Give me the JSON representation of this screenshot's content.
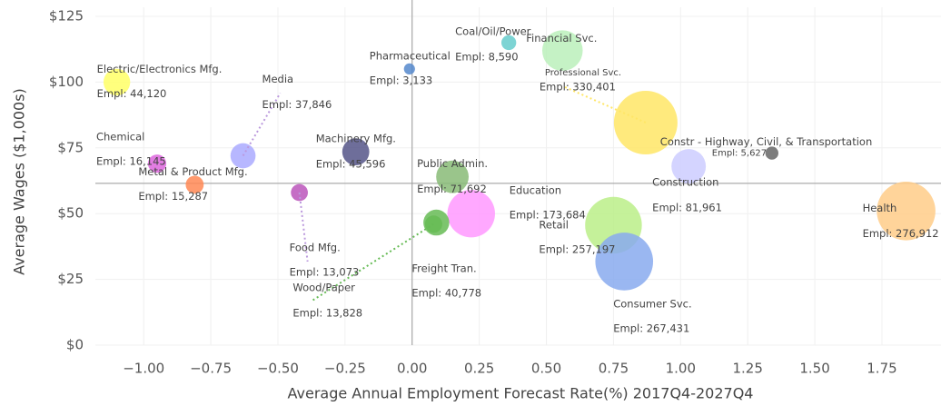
{
  "chart_data": {
    "type": "bubble",
    "xlabel": "Average Annual Employment Forecast Rate(%) 2017Q4-2027Q4",
    "ylabel": "Average Wages ($1,000s)",
    "xlim": [
      -1.18,
      1.97
    ],
    "ylim": [
      0,
      125
    ],
    "xticks": [
      {
        "value": -1,
        "label": "−1.00"
      },
      {
        "value": -0.75,
        "label": "−0.75"
      },
      {
        "value": -0.5,
        "label": "−0.50"
      },
      {
        "value": -0.25,
        "label": "−0.25"
      },
      {
        "value": 0,
        "label": "0.00"
      },
      {
        "value": 0.25,
        "label": "0.25"
      },
      {
        "value": 0.5,
        "label": "0.50"
      },
      {
        "value": 0.75,
        "label": "0.75"
      },
      {
        "value": 1,
        "label": "1.00"
      },
      {
        "value": 1.25,
        "label": "1.25"
      },
      {
        "value": 1.5,
        "label": "1.50"
      },
      {
        "value": 1.75,
        "label": "1.75"
      }
    ],
    "yticks": [
      {
        "value": 0,
        "label": "$0"
      },
      {
        "value": 25,
        "label": "$25"
      },
      {
        "value": 50,
        "label": "$50"
      },
      {
        "value": 75,
        "label": "$75"
      },
      {
        "value": 100,
        "label": "$100"
      },
      {
        "value": 125,
        "label": "$125"
      }
    ],
    "grid": true,
    "reference_lines": {
      "x": 0,
      "y": 61.5
    },
    "names": [
      "Electric/Electronics Mfg.",
      "Chemical",
      "Metal & Product Mfg.",
      "Media",
      "Food Mfg.",
      "Machinery Mfg.",
      "Pharmaceutical",
      "Coal/Oil/Power",
      "Financial Svc.",
      "Professional Svc.",
      "Public Admin.",
      "Education",
      "Freight Tran.",
      "Retail",
      "Consumer Svc.",
      "Construction",
      "Constr - Highway, Civil, & Transportation",
      "Health",
      "Wood/Paper"
    ],
    "x": [
      -1.1,
      -0.95,
      -0.81,
      -0.63,
      -0.42,
      -0.21,
      -0.01,
      0.36,
      0.56,
      0.87,
      0.15,
      0.22,
      0.09,
      0.75,
      0.79,
      1.03,
      1.34,
      1.84,
      0.08
    ],
    "values": [
      100,
      69,
      61,
      72,
      58,
      73.5,
      105,
      115,
      112,
      84.6,
      64,
      50,
      46.6,
      45.6,
      31.8,
      68,
      73,
      51,
      46
    ],
    "sizes": [
      44120,
      16145,
      15287,
      37846,
      13073,
      45596,
      3133,
      8590,
      120000,
      330401,
      71692,
      173684,
      40778,
      257197,
      267431,
      81961,
      5627,
      276912,
      13828
    ],
    "size_labels": [
      "Empl: 44,120",
      "Empl: 16,145",
      "Empl: 15,287",
      "Empl: 37,846",
      "Empl: 13,073",
      "Empl: 45,596",
      "Empl: 3,133",
      "Empl: 8,590",
      null,
      "Empl: 330,401",
      "Empl: 71,692",
      "Empl: 173,684",
      "Empl: 40,778",
      "Empl: 257,197",
      "Empl: 267,431",
      "Empl: 81,961",
      "Empl: 5,627",
      "Empl: 276,912",
      "Empl: 13,828"
    ],
    "colors": [
      "#ffff66",
      "#dd66dd",
      "#ff8855",
      "#aaaaff",
      "#bb55bb",
      "#555588",
      "#5588cc",
      "#66cccc",
      "#bbf0bb",
      "#ffe666",
      "#88bb77",
      "#ff99ff",
      "#66bb55",
      "#bbee88",
      "#88aaee",
      "#ccccff",
      "#666666",
      "#ffcc88",
      "#66bb55"
    ]
  }
}
